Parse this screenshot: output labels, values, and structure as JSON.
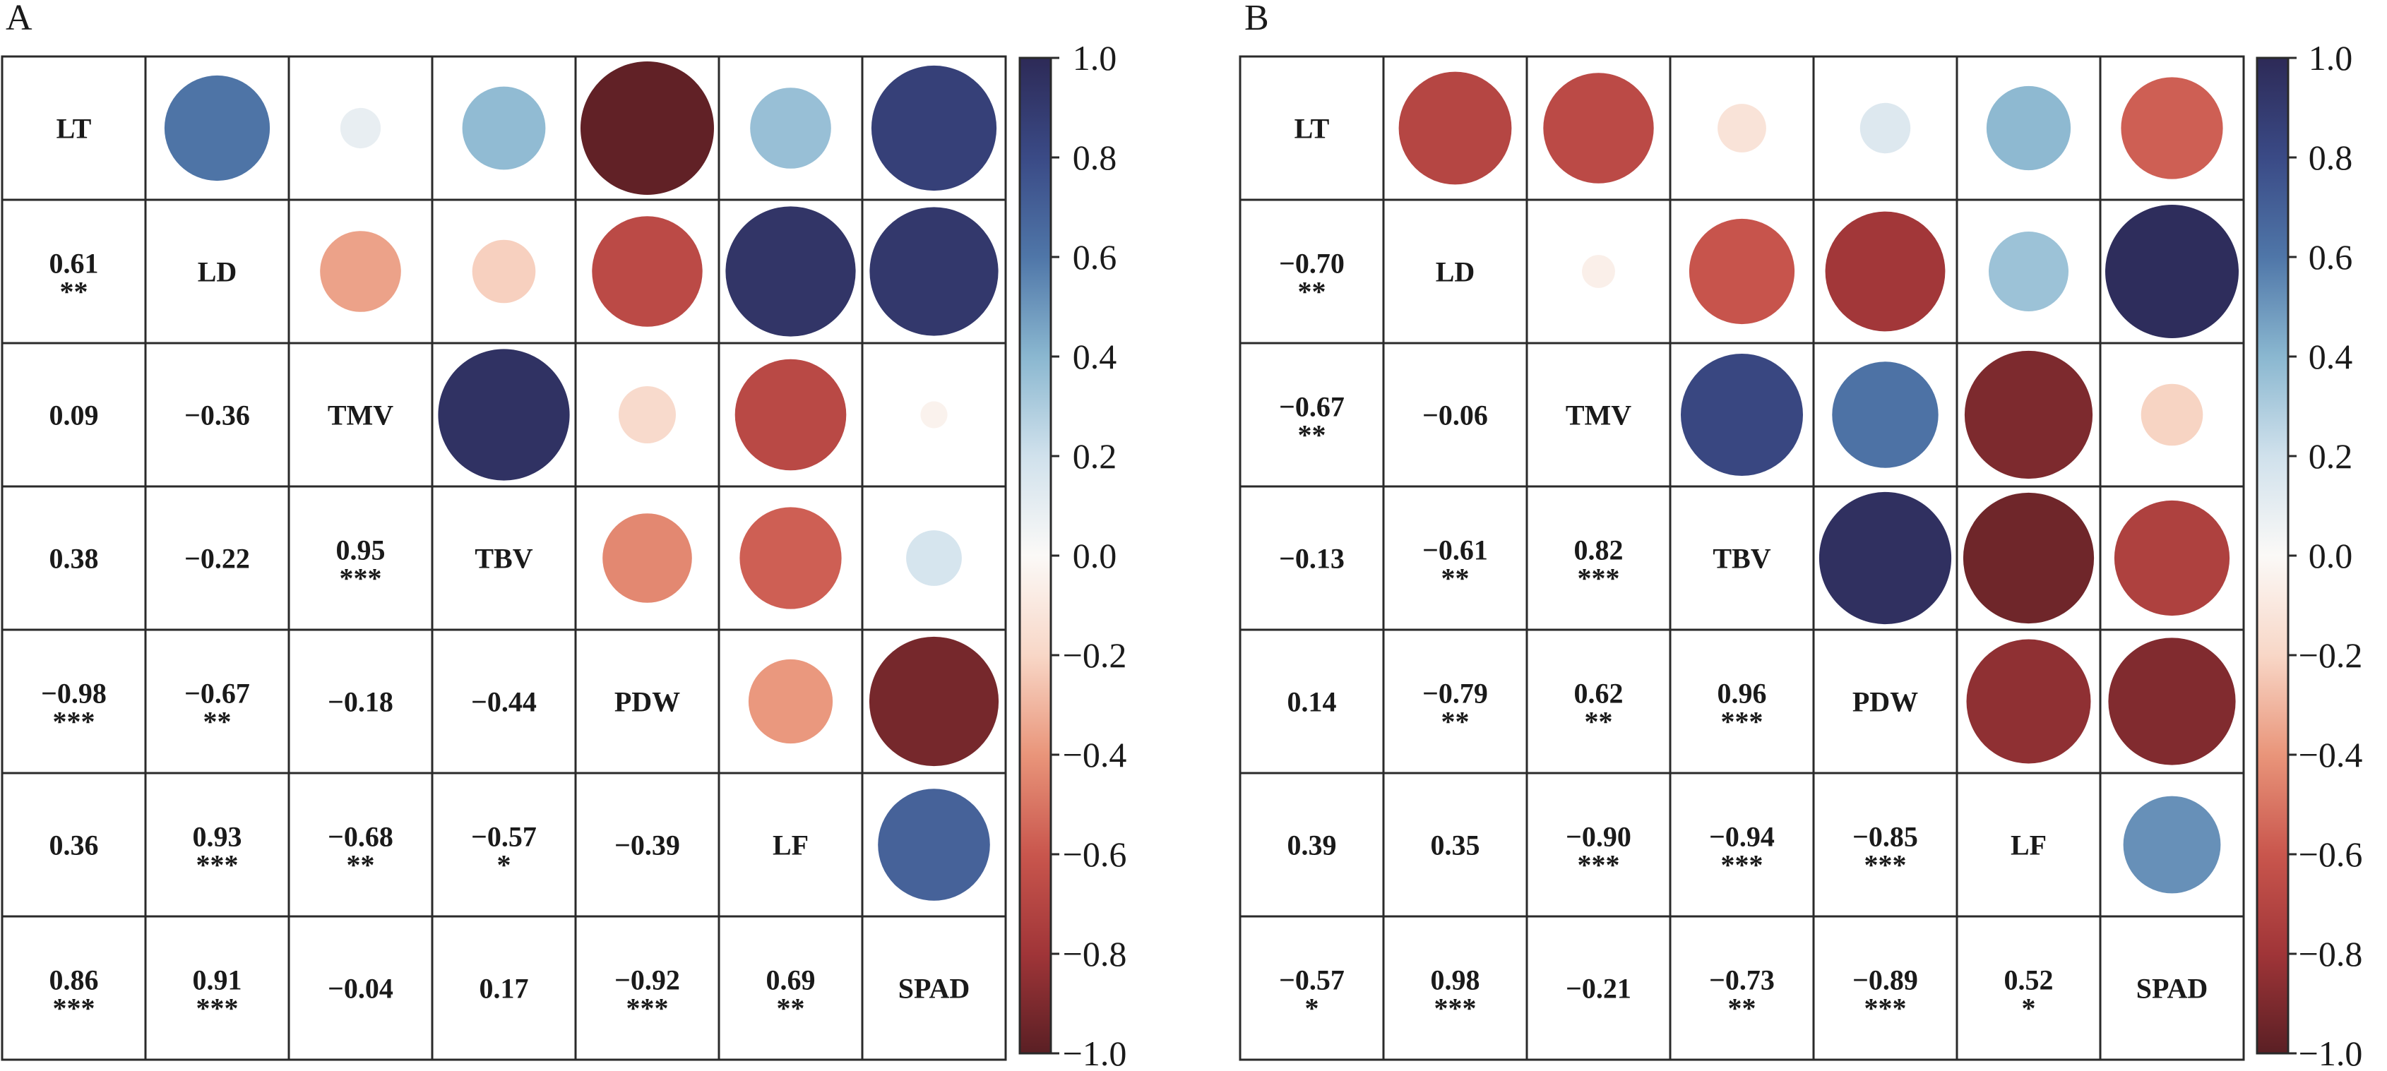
{
  "chart_data": [
    {
      "type": "heatmap",
      "panel_label": "A",
      "variables": [
        "LT",
        "LD",
        "TMV",
        "TBV",
        "PDW",
        "LF",
        "SPAD"
      ],
      "lower_values": [
        [
          null,
          null,
          null,
          null,
          null,
          null,
          null
        ],
        [
          0.61,
          null,
          null,
          null,
          null,
          null,
          null
        ],
        [
          0.09,
          -0.36,
          null,
          null,
          null,
          null,
          null
        ],
        [
          0.38,
          -0.22,
          0.95,
          null,
          null,
          null,
          null
        ],
        [
          -0.98,
          -0.67,
          -0.18,
          -0.44,
          null,
          null,
          null
        ],
        [
          0.36,
          0.93,
          -0.68,
          -0.57,
          -0.39,
          null,
          null
        ],
        [
          0.86,
          0.91,
          -0.04,
          0.17,
          -0.92,
          0.69,
          null
        ]
      ],
      "lower_labels": [
        [
          null,
          null,
          null,
          null,
          null,
          null,
          null
        ],
        [
          "0.61",
          null,
          null,
          null,
          null,
          null,
          null
        ],
        [
          "0.09",
          "−0.36",
          null,
          null,
          null,
          null,
          null
        ],
        [
          "0.38",
          "−0.22",
          "0.95",
          null,
          null,
          null,
          null
        ],
        [
          "−0.98",
          "−0.67",
          "−0.18",
          "−0.44",
          null,
          null,
          null
        ],
        [
          "0.36",
          "0.93",
          "−0.68",
          "−0.57",
          "−0.39",
          null,
          null
        ],
        [
          "0.86",
          "0.91",
          "−0.04",
          "0.17",
          "−0.92",
          "0.69",
          null
        ]
      ],
      "lower_significance": [
        [
          null,
          null,
          null,
          null,
          null,
          null,
          null
        ],
        [
          "**",
          null,
          null,
          null,
          null,
          null,
          null
        ],
        [
          "",
          "",
          null,
          null,
          null,
          null,
          null
        ],
        [
          "",
          "",
          "***",
          null,
          null,
          null,
          null
        ],
        [
          "***",
          "**",
          "",
          "",
          null,
          null,
          null
        ],
        [
          "",
          "***",
          "**",
          "*",
          "",
          null,
          null
        ],
        [
          "***",
          "***",
          "",
          "",
          "***",
          "**",
          null
        ]
      ],
      "upper_circle_values": [
        [
          null,
          0.61,
          0.09,
          0.38,
          -0.98,
          0.36,
          0.86
        ],
        [
          null,
          null,
          -0.36,
          -0.22,
          -0.67,
          0.93,
          0.91
        ],
        [
          null,
          null,
          null,
          0.95,
          -0.18,
          -0.68,
          -0.04
        ],
        [
          null,
          null,
          null,
          null,
          -0.44,
          -0.57,
          0.17
        ],
        [
          null,
          null,
          null,
          null,
          null,
          -0.39,
          -0.92
        ],
        [
          null,
          null,
          null,
          null,
          null,
          null,
          0.69
        ],
        [
          null,
          null,
          null,
          null,
          null,
          null,
          null
        ]
      ],
      "colorbar": {
        "range": [
          -1.0,
          1.0
        ],
        "ticks": [
          "1.0",
          "0.8",
          "0.6",
          "0.4",
          "0.2",
          "0.0",
          "−0.2",
          "−0.4",
          "−0.6",
          "−0.8",
          "−1.0"
        ]
      }
    },
    {
      "type": "heatmap",
      "panel_label": "B",
      "variables": [
        "LT",
        "LD",
        "TMV",
        "TBV",
        "PDW",
        "LF",
        "SPAD"
      ],
      "lower_values": [
        [
          null,
          null,
          null,
          null,
          null,
          null,
          null
        ],
        [
          -0.7,
          null,
          null,
          null,
          null,
          null,
          null
        ],
        [
          -0.67,
          -0.06,
          null,
          null,
          null,
          null,
          null
        ],
        [
          -0.13,
          -0.61,
          0.82,
          null,
          null,
          null,
          null
        ],
        [
          0.14,
          -0.79,
          0.62,
          0.96,
          null,
          null,
          null
        ],
        [
          0.39,
          0.35,
          -0.9,
          -0.94,
          -0.85,
          null,
          null
        ],
        [
          -0.57,
          0.98,
          -0.21,
          -0.73,
          -0.89,
          0.52,
          null
        ]
      ],
      "lower_labels": [
        [
          null,
          null,
          null,
          null,
          null,
          null,
          null
        ],
        [
          "−0.70",
          null,
          null,
          null,
          null,
          null,
          null
        ],
        [
          "−0.67",
          "−0.06",
          null,
          null,
          null,
          null,
          null
        ],
        [
          "−0.13",
          "−0.61",
          "0.82",
          null,
          null,
          null,
          null
        ],
        [
          "0.14",
          "−0.79",
          "0.62",
          "0.96",
          null,
          null,
          null
        ],
        [
          "0.39",
          "0.35",
          "−0.90",
          "−0.94",
          "−0.85",
          null,
          null
        ],
        [
          "−0.57",
          "0.98",
          "−0.21",
          "−0.73",
          "−0.89",
          "0.52",
          null
        ]
      ],
      "lower_significance": [
        [
          null,
          null,
          null,
          null,
          null,
          null,
          null
        ],
        [
          "**",
          null,
          null,
          null,
          null,
          null,
          null
        ],
        [
          "**",
          "",
          null,
          null,
          null,
          null,
          null
        ],
        [
          "",
          "**",
          "***",
          null,
          null,
          null,
          null
        ],
        [
          "",
          "**",
          "**",
          "***",
          null,
          null,
          null
        ],
        [
          "",
          "",
          "***",
          "***",
          "***",
          null,
          null
        ],
        [
          "*",
          "***",
          "",
          "**",
          "***",
          "*",
          null
        ]
      ],
      "upper_circle_values": [
        [
          null,
          -0.7,
          -0.67,
          -0.13,
          0.14,
          0.39,
          -0.57
        ],
        [
          null,
          null,
          -0.06,
          -0.61,
          -0.79,
          0.35,
          0.98
        ],
        [
          null,
          null,
          null,
          0.82,
          0.62,
          -0.9,
          -0.21
        ],
        [
          null,
          null,
          null,
          null,
          0.96,
          -0.94,
          -0.73
        ],
        [
          null,
          null,
          null,
          null,
          null,
          -0.85,
          -0.89
        ],
        [
          null,
          null,
          null,
          null,
          null,
          null,
          0.52
        ],
        [
          null,
          null,
          null,
          null,
          null,
          null,
          null
        ]
      ],
      "colorbar": {
        "range": [
          -1.0,
          1.0
        ],
        "ticks": [
          "1.0",
          "0.8",
          "0.6",
          "0.4",
          "0.2",
          "0.0",
          "−0.2",
          "−0.4",
          "−0.6",
          "−0.8",
          "−1.0"
        ]
      }
    }
  ]
}
